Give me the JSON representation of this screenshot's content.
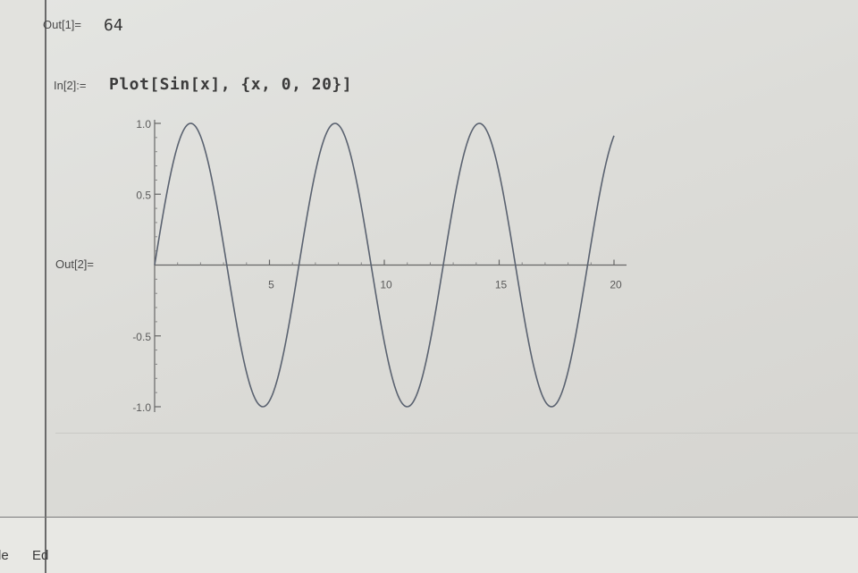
{
  "notebook": {
    "out1": {
      "label": "Out[1]=",
      "value": "64"
    },
    "in2": {
      "label": "In[2]:=",
      "code": "Plot[Sin[x], {x, 0, 20}]"
    },
    "out2": {
      "label": "Out[2]="
    }
  },
  "bottom_menu": {
    "items": [
      "le",
      "Ed"
    ]
  },
  "chart_data": {
    "type": "line",
    "function": "Sin[x]",
    "xlim": [
      0,
      20
    ],
    "ylim": [
      -1.0,
      1.0
    ],
    "x_ticks": [
      {
        "value": 5,
        "label": "5"
      },
      {
        "value": 10,
        "label": "10"
      },
      {
        "value": 15,
        "label": "15"
      },
      {
        "value": 20,
        "label": "20"
      }
    ],
    "y_ticks": [
      {
        "value": 1.0,
        "label": "1.0"
      },
      {
        "value": 0.5,
        "label": "0.5"
      },
      {
        "value": -0.5,
        "label": "-0.5"
      },
      {
        "value": -1.0,
        "label": "-1.0"
      }
    ],
    "series": [
      {
        "color": "#5a6270",
        "x": [
          0,
          0.5,
          1,
          1.5,
          2,
          2.5,
          3,
          3.5,
          4,
          4.5,
          5,
          5.5,
          6,
          6.5,
          7,
          7.5,
          8,
          8.5,
          9,
          9.5,
          10,
          10.5,
          11,
          11.5,
          12,
          12.5,
          13,
          13.5,
          14,
          14.5,
          15,
          15.5,
          16,
          16.5,
          17,
          17.5,
          18,
          18.5,
          19,
          19.5,
          20
        ],
        "y": [
          0,
          0.479,
          0.841,
          0.997,
          0.909,
          0.598,
          0.141,
          -0.351,
          -0.757,
          -0.978,
          -0.959,
          -0.706,
          -0.279,
          0.215,
          0.657,
          0.938,
          0.989,
          0.798,
          0.412,
          -0.075,
          -0.544,
          -0.88,
          -1.0,
          -0.875,
          -0.537,
          -0.066,
          0.42,
          0.804,
          0.991,
          0.935,
          0.65,
          0.206,
          -0.288,
          -0.712,
          -0.961,
          -0.977,
          -0.751,
          -0.338,
          0.15,
          0.605,
          0.913
        ]
      }
    ],
    "grid": false
  }
}
